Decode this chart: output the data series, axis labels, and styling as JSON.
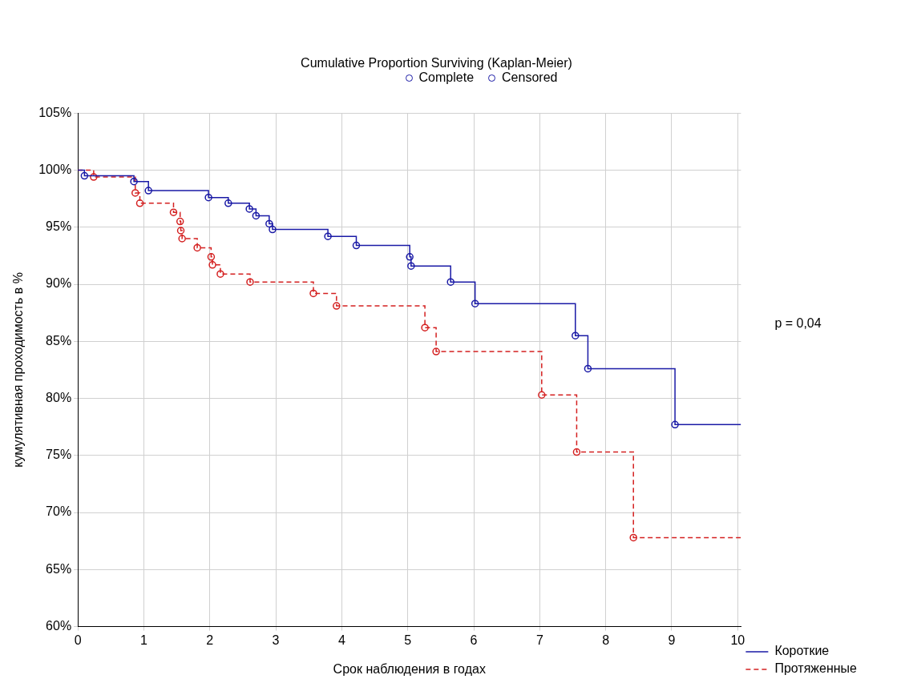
{
  "chart_data": {
    "type": "step",
    "title": "Cumulative Proportion Surviving (Kaplan-Meier)",
    "xlabel": "Срок наблюдения в годах",
    "ylabel": "кумулятивная проходимость в %",
    "annotations": [
      "Complete",
      "Censored",
      "p = 0,04"
    ],
    "series": [
      {
        "name": "Короткие",
        "color": "#1a1aa6",
        "line_style": "solid",
        "x": [
          0,
          0.1,
          0.85,
          1.07,
          1.98,
          2.28,
          2.6,
          2.7,
          2.9,
          2.95,
          3.79,
          4.22,
          5.03,
          5.05,
          5.65,
          6.02,
          7.54,
          7.73,
          9.05,
          10.05
        ],
        "values": [
          100,
          99.5,
          99.0,
          98.2,
          97.6,
          97.1,
          96.6,
          96.0,
          95.3,
          94.8,
          94.2,
          93.4,
          92.4,
          91.6,
          90.2,
          88.3,
          85.5,
          82.6,
          77.7,
          77.7
        ]
      },
      {
        "name": "Протяженные",
        "color": "#d42020",
        "line_style": "dashed",
        "x": [
          0,
          0.24,
          0.87,
          0.94,
          1.45,
          1.55,
          1.56,
          1.58,
          1.81,
          2.02,
          2.04,
          2.16,
          2.61,
          3.57,
          3.92,
          5.26,
          5.43,
          7.03,
          7.56,
          8.42,
          10.05
        ],
        "values": [
          100,
          99.4,
          98.0,
          97.1,
          96.3,
          95.5,
          94.7,
          94.0,
          93.2,
          92.4,
          91.7,
          90.9,
          90.2,
          89.2,
          88.1,
          86.2,
          84.1,
          80.3,
          75.3,
          67.8,
          67.8
        ]
      }
    ],
    "xlim": [
      0,
      10.05
    ],
    "xticks": [
      0,
      1,
      2,
      3,
      4,
      5,
      6,
      7,
      8,
      9,
      10
    ],
    "ylim": [
      60,
      105
    ],
    "yticks": [
      {
        "value": 60,
        "label": "60%"
      },
      {
        "value": 65,
        "label": "65%"
      },
      {
        "value": 70,
        "label": "70%"
      },
      {
        "value": 75,
        "label": "75%"
      },
      {
        "value": 80,
        "label": "80%"
      },
      {
        "value": 85,
        "label": "85%"
      },
      {
        "value": 90,
        "label": "90%"
      },
      {
        "value": 95,
        "label": "95%"
      },
      {
        "value": 100,
        "label": "100%"
      },
      {
        "value": 105,
        "label": "105%"
      }
    ],
    "grid": true,
    "legend": "bottom right",
    "marker": "circle"
  }
}
